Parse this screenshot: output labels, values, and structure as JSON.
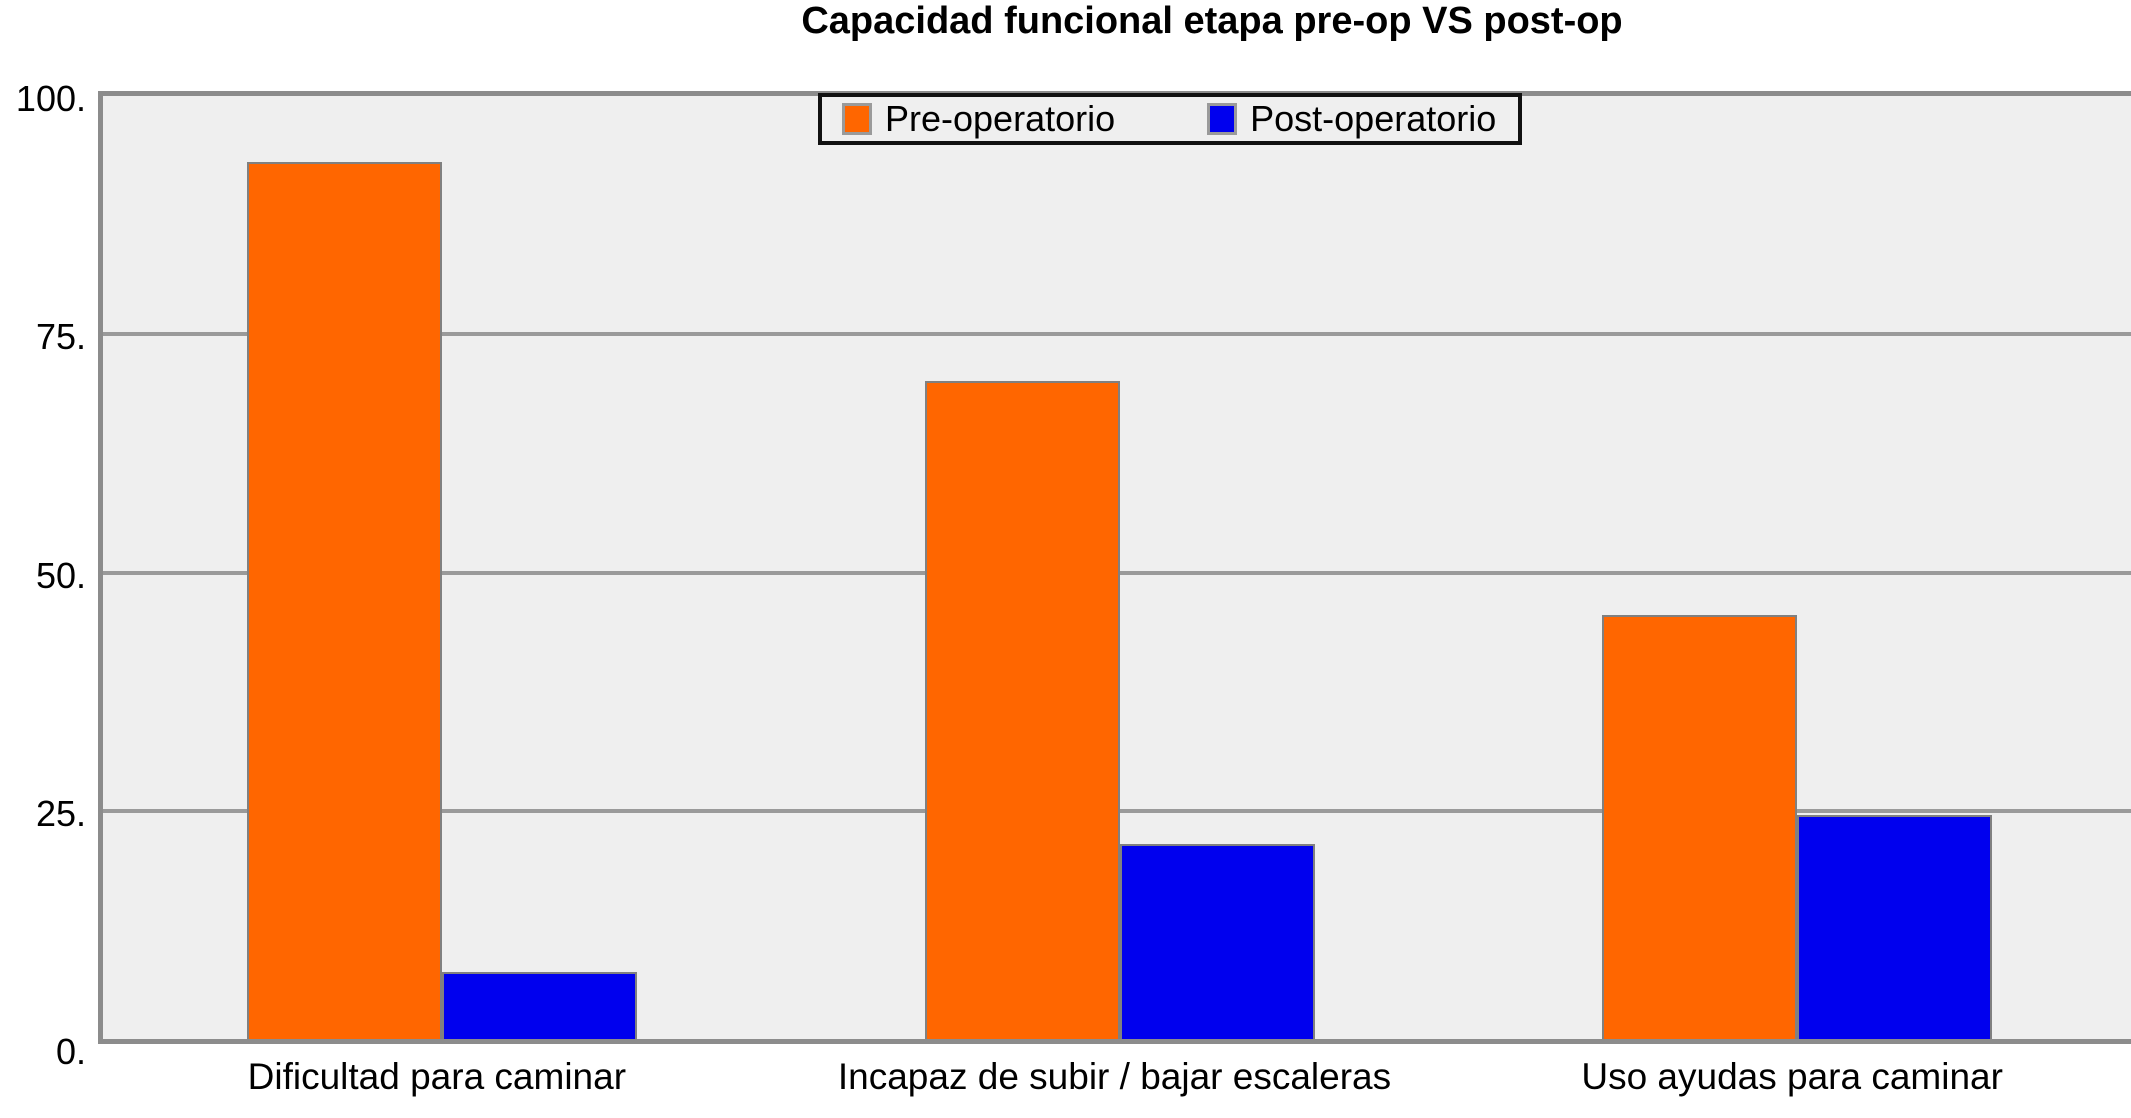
{
  "title": "Capacidad funcional etapa pre-op VS post-op",
  "chart_data": {
    "type": "bar",
    "title": "Capacidad funcional etapa pre-op VS post-op",
    "categories": [
      "Dificultad para caminar",
      "Incapaz de subir / bajar escaleras",
      "Uso ayudas para caminar"
    ],
    "series": [
      {
        "name": "Pre-operatorio",
        "color": "#FF6600",
        "values": [
          92,
          69,
          44.5
        ]
      },
      {
        "name": "Post-operatorio",
        "color": "#0000EE",
        "values": [
          7,
          20.5,
          23.5
        ]
      }
    ],
    "xlabel": "",
    "ylabel": "",
    "ylim": [
      0,
      100
    ],
    "yticks": [
      {
        "value": 100,
        "label": "100."
      },
      {
        "value": 75,
        "label": "75."
      },
      {
        "value": 50,
        "label": "50."
      },
      {
        "value": 25,
        "label": "25."
      },
      {
        "value": 0,
        "label": "0."
      }
    ],
    "grid": true,
    "legend_position": "top-center"
  },
  "colors": {
    "plot_background": "#EFEFEF",
    "page_background": "#FFFFFF",
    "gridline": "#9A9A9A",
    "axis_border": "#8C8C8C",
    "bar_border": "#808080",
    "legend_border": "#111111",
    "text": "#000000",
    "pre_op": "#FF6600",
    "post_op": "#0000EE"
  }
}
